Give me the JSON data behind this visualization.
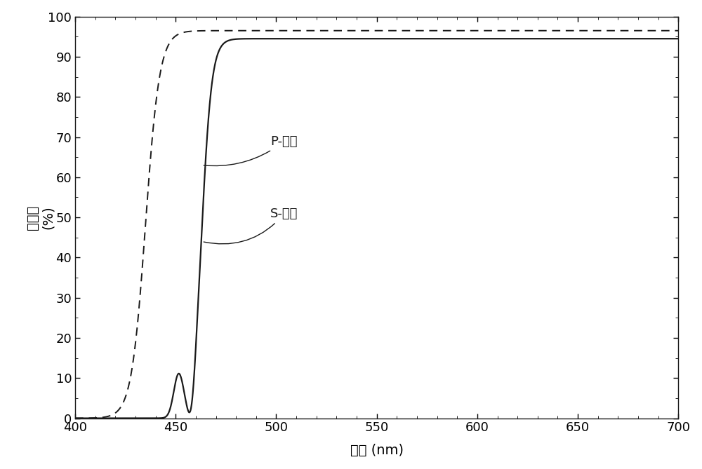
{
  "title": "",
  "xlabel": "波長 (nm)",
  "ylabel": "透射率 (%)",
  "xlim": [
    400,
    700
  ],
  "ylim": [
    0,
    100
  ],
  "xticks": [
    400,
    450,
    500,
    550,
    600,
    650,
    700
  ],
  "yticks": [
    0,
    10,
    20,
    30,
    40,
    50,
    60,
    70,
    80,
    90,
    100
  ],
  "line_color": "#1a1a1a",
  "background_color": "#ffffff",
  "annotation_p": "P-偏振",
  "annotation_s": "S-偏振",
  "figsize": [
    10.0,
    6.69
  ],
  "dpi": 100
}
